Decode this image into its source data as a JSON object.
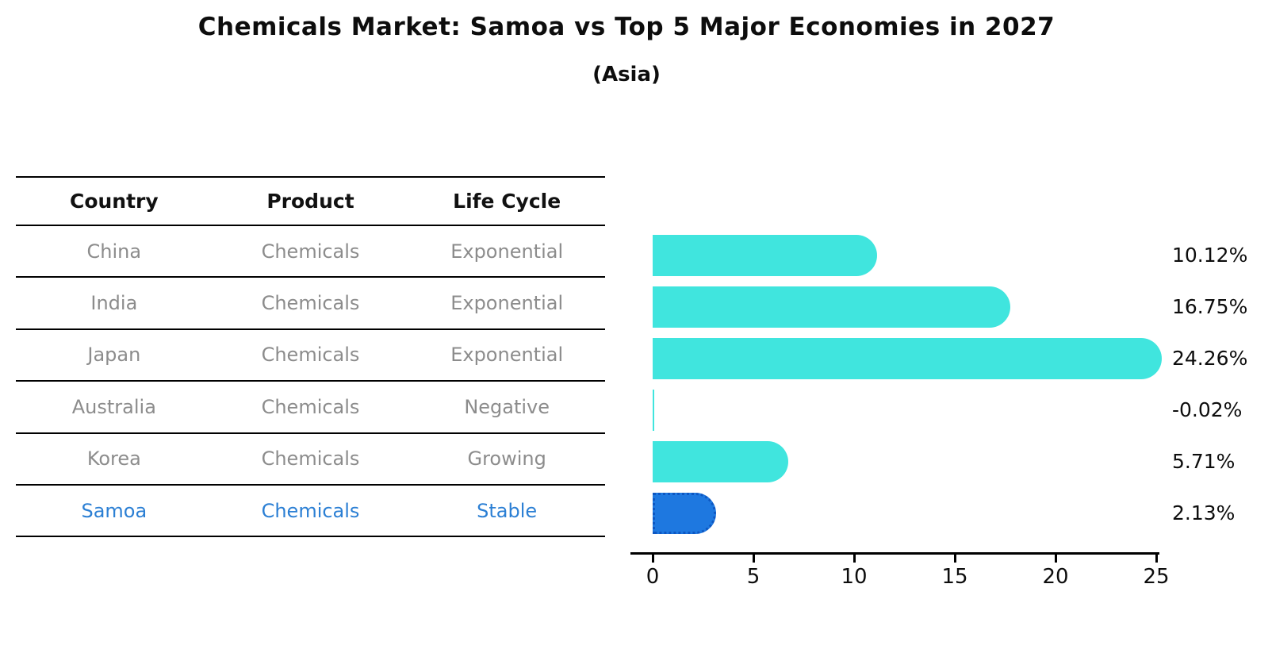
{
  "title": "Chemicals Market: Samoa vs Top 5 Major Economies in 2027",
  "subtitle": "(Asia)",
  "table": {
    "columns": [
      "Country",
      "Product",
      "Life Cycle"
    ],
    "rows": [
      {
        "country": "China",
        "product": "Chemicals",
        "life_cycle": "Exponential",
        "highlight": false
      },
      {
        "country": "India",
        "product": "Chemicals",
        "life_cycle": "Exponential",
        "highlight": false
      },
      {
        "country": "Japan",
        "product": "Chemicals",
        "life_cycle": "Exponential",
        "highlight": false
      },
      {
        "country": "Australia",
        "product": "Chemicals",
        "life_cycle": "Negative",
        "highlight": false
      },
      {
        "country": "Korea",
        "product": "Chemicals",
        "life_cycle": "Growing",
        "highlight": false
      },
      {
        "country": "Samoa",
        "product": "Chemicals",
        "life_cycle": "Stable",
        "highlight": true
      }
    ]
  },
  "chart_data": {
    "type": "bar",
    "orientation": "horizontal",
    "title": "Chemicals Market: Samoa vs Top 5 Major Economies in 2027",
    "subtitle": "(Asia)",
    "categories": [
      "China",
      "India",
      "Japan",
      "Australia",
      "Korea",
      "Samoa"
    ],
    "values": [
      10.12,
      16.75,
      24.26,
      -0.02,
      5.71,
      2.13
    ],
    "value_labels": [
      "10.12%",
      "16.75%",
      "24.26%",
      "-0.02%",
      "5.71%",
      "2.13%"
    ],
    "x_ticks": [
      "0",
      "5",
      "10",
      "15",
      "20",
      "25"
    ],
    "xlim": [
      0,
      25
    ],
    "grid": false,
    "legend": "none",
    "bar_color": "#40e5de",
    "highlight_bar_color": "#1e78e0",
    "highlight_index": 5
  },
  "colors": {
    "bar_cyan": "#40e5de",
    "bar_blue": "#1e78e0",
    "highlight_text": "#2b7fd4",
    "table_text": "#8c8c8c",
    "header_text": "#111111",
    "axis": "#000000",
    "background": "#ffffff"
  }
}
